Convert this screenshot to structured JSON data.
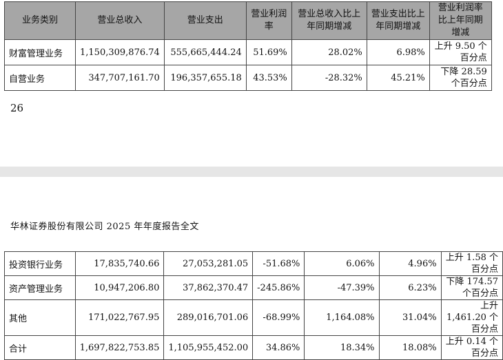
{
  "table_top": {
    "headers": [
      "业务类别",
      "营业总收入",
      "营业支出",
      "营业利润率",
      "营业总收入比上年同期增减",
      "营业支出比上年同期增减",
      "营业利润率比上年同期增减"
    ],
    "rows": [
      {
        "category": "财富管理业务",
        "revenue": "1,150,309,876.74",
        "expense": "555,665,444.24",
        "margin": "51.69%",
        "revenue_yoy": "28.02%",
        "expense_yoy": "6.98%",
        "margin_change": "上升 9.50 个百分点"
      },
      {
        "category": "自营业务",
        "revenue": "347,707,161.70",
        "expense": "196,357,655.18",
        "margin": "43.53%",
        "revenue_yoy": "-28.32%",
        "expense_yoy": "45.21%",
        "margin_change": "下降 28.59 个百分点"
      }
    ]
  },
  "page_number": "26",
  "running_header": "华林证券股份有限公司 2025 年年度报告全文",
  "table_bottom": {
    "rows": [
      {
        "category": "投资银行业务",
        "revenue": "17,835,740.66",
        "expense": "27,053,281.05",
        "margin": "-51.68%",
        "revenue_yoy": "6.06%",
        "expense_yoy": "4.96%",
        "margin_change": "上升 1.58 个百分点"
      },
      {
        "category": "资产管理业务",
        "revenue": "10,947,206.80",
        "expense": "37,862,370.47",
        "margin": "-245.86%",
        "revenue_yoy": "-47.39%",
        "expense_yoy": "6.23%",
        "margin_change": "下降 174.57 个百分点"
      },
      {
        "category": "其他",
        "revenue": "171,022,767.95",
        "expense": "289,016,701.06",
        "margin": "-68.99%",
        "revenue_yoy": "1,164.08%",
        "expense_yoy": "31.04%",
        "margin_change": "上升 1,461.20 个百分点"
      },
      {
        "category": "合计",
        "revenue": "1,697,822,753.85",
        "expense": "1,105,955,452.00",
        "margin": "34.86%",
        "revenue_yoy": "18.34%",
        "expense_yoy": "18.08%",
        "margin_change": "上升 0.14 个百分点"
      }
    ]
  },
  "colors": {
    "header_bg": "#a6a6a6",
    "page_gap": "#e6e6e6",
    "border": "#444444"
  }
}
